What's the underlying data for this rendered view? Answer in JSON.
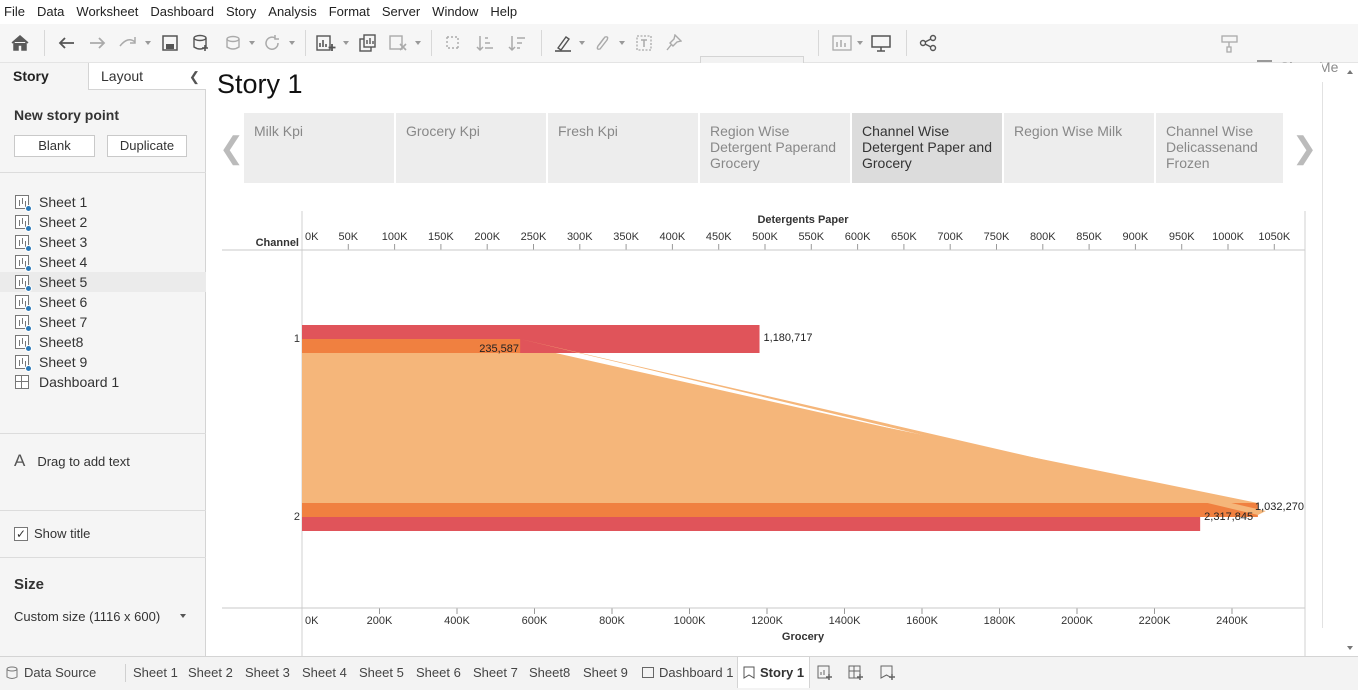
{
  "menu": [
    "File",
    "Data",
    "Worksheet",
    "Dashboard",
    "Story",
    "Analysis",
    "Format",
    "Server",
    "Window",
    "Help"
  ],
  "toolbar": {
    "show_me": "Show Me"
  },
  "sidebar": {
    "tab_story": "Story",
    "tab_layout": "Layout",
    "new_story_point": "New story point",
    "blank": "Blank",
    "duplicate": "Duplicate",
    "sheets": [
      "Sheet 1",
      "Sheet 2",
      "Sheet 3",
      "Sheet 4",
      "Sheet 5",
      "Sheet 6",
      "Sheet 7",
      "Sheet8",
      "Sheet 9",
      "Dashboard 1"
    ],
    "drag_text": "Drag to add text",
    "drag_icon": "A",
    "show_title": "Show title",
    "size_heading": "Size",
    "size_value": "Custom size (1116 x 600)"
  },
  "story": {
    "title": "Story 1",
    "points": [
      "Milk Kpi",
      "Grocery Kpi",
      "Fresh Kpi",
      "Region Wise Detergent Paperand Grocery",
      "Channel Wise Detergent Paper and Grocery",
      "Region Wise Milk",
      "Channel Wise Delicassenand Frozen"
    ],
    "active_point": 4
  },
  "chart_data": {
    "type": "bar",
    "row_header": "Channel",
    "categories": [
      "1",
      "2"
    ],
    "top_axis": {
      "label": "Detergents Paper",
      "ticks": [
        "0K",
        "50K",
        "100K",
        "150K",
        "200K",
        "250K",
        "300K",
        "350K",
        "400K",
        "450K",
        "500K",
        "550K",
        "600K",
        "650K",
        "700K",
        "750K",
        "800K",
        "850K",
        "900K",
        "950K",
        "1000K",
        "1050K"
      ]
    },
    "bottom_axis": {
      "label": "Grocery",
      "ticks": [
        "0K",
        "200K",
        "400K",
        "600K",
        "800K",
        "1000K",
        "1200K",
        "1400K",
        "1600K",
        "1800K",
        "2000K",
        "2200K",
        "2400K"
      ]
    },
    "series": [
      {
        "name": "Detergents Paper",
        "axis": "top",
        "values": [
          235587,
          1032270
        ],
        "color": "#f08040"
      },
      {
        "name": "Grocery",
        "axis": "bottom",
        "values": [
          1180717,
          2317845
        ],
        "color": "#e0545a"
      }
    ],
    "labels": {
      "1_grocery": "1,180,717",
      "1_det": "235,587",
      "2_grocery": "2,317,845",
      "2_det": "1,032,270"
    },
    "area_color": "#f5b67a"
  },
  "bottom_tabs": [
    "Data Source",
    "Sheet 1",
    "Sheet 2",
    "Sheet 3",
    "Sheet 4",
    "Sheet 5",
    "Sheet 6",
    "Sheet 7",
    "Sheet8",
    "Sheet 9",
    "Dashboard 1",
    "Story 1"
  ]
}
